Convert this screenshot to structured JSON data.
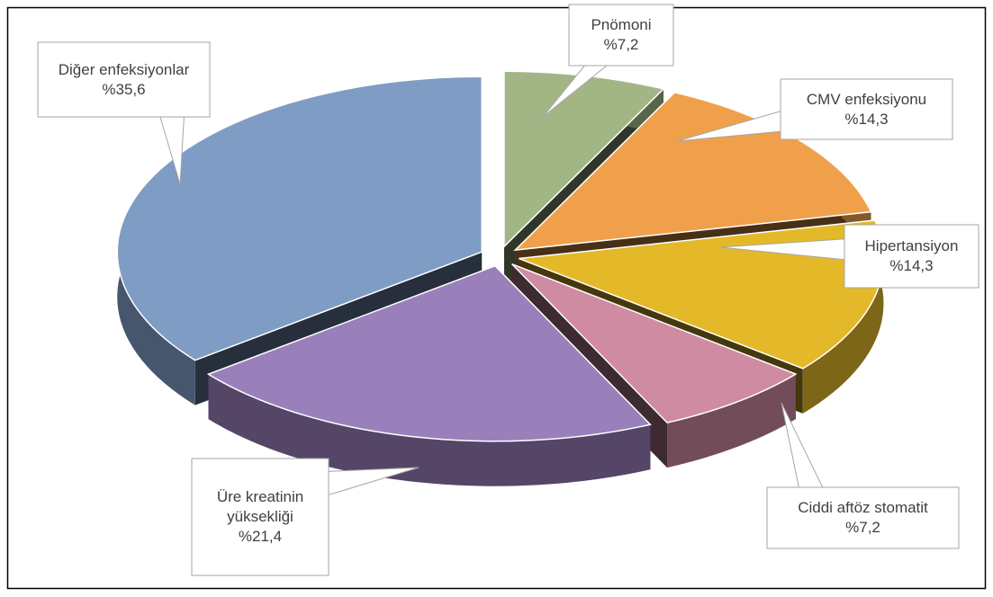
{
  "chart_data": {
    "type": "pie",
    "style": "3d-exploded",
    "categories": [
      "Pnömoni",
      "CMV enfeksiyonu",
      "Hipertansiyon",
      "Ciddi aftöz stomatit",
      "Üre kreatinin yüksekliği",
      "Diğer enfeksiyonlar"
    ],
    "values": [
      7.2,
      14.3,
      14.3,
      7.2,
      21.4,
      35.6
    ],
    "value_labels": [
      "%7,2",
      "%14,3",
      "%14,3",
      "%7,2",
      "%21,4",
      "%35,6"
    ],
    "colors": [
      "#a2b685",
      "#f0a04b",
      "#e4b929",
      "#cf8ba2",
      "#9a80bb",
      "#7f9cc4"
    ]
  }
}
